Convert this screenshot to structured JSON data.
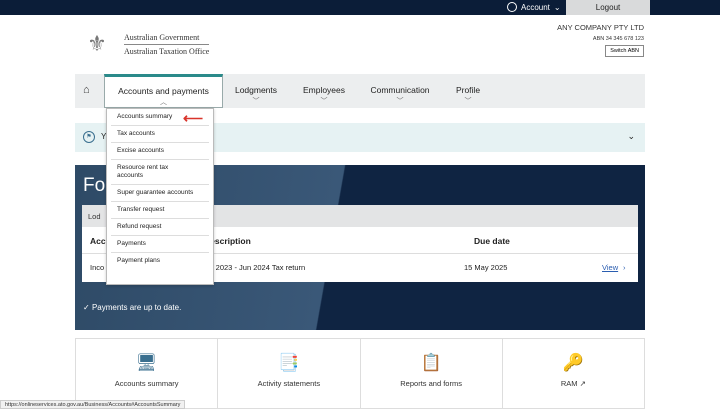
{
  "topbar": {
    "account_label": "Account",
    "logout_label": "Logout"
  },
  "logo": {
    "line1": "Australian Government",
    "line2": "Australian Taxation Office"
  },
  "company": {
    "name": "ANY COMPANY PTY LTD",
    "abn": "ABN 34 345 678 123",
    "switch_label": "Switch ABN"
  },
  "nav": {
    "items": [
      {
        "label": "Accounts and payments"
      },
      {
        "label": "Lodgments"
      },
      {
        "label": "Employees"
      },
      {
        "label": "Communication"
      },
      {
        "label": "Profile"
      }
    ]
  },
  "dropdown": {
    "items": [
      "Accounts summary",
      "Tax accounts",
      "Excise accounts",
      "Resource rent tax accounts",
      "Super guarantee accounts",
      "Transfer request",
      "Refund request",
      "Payments",
      "Payment plans"
    ]
  },
  "banner": {
    "text": "Y"
  },
  "panel": {
    "title": "Fo",
    "card_header": "Lod",
    "columns": [
      "Acc",
      "Description",
      "Due date"
    ],
    "row": {
      "account": "Inco",
      "description": "Jul 2023 - Jun 2024 Tax return",
      "due": "15 May 2025",
      "link": "View"
    },
    "payments_status": "Payments are up to date."
  },
  "tiles": [
    {
      "label": "Accounts summary",
      "icon": "monitor-document-icon"
    },
    {
      "label": "Activity statements",
      "icon": "statement-icon"
    },
    {
      "label": "Reports and forms",
      "icon": "clipboard-icon"
    },
    {
      "label": "RAM",
      "icon": "key-icon"
    }
  ],
  "status_url": "https://onlineservices.ato.gov.au/Business/Accounts#AccountsSummary",
  "colors": {
    "navy": "#0b1d38",
    "accent": "#2a8a8a",
    "arrow": "#d9342b"
  }
}
